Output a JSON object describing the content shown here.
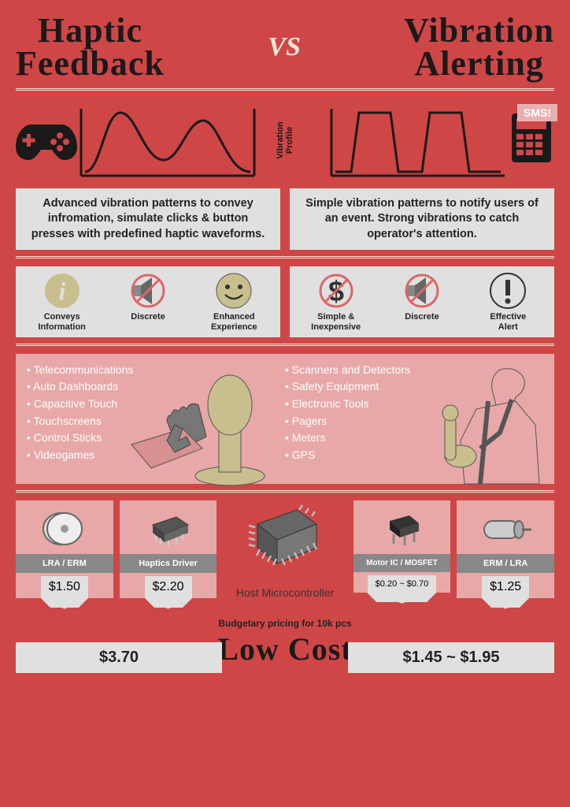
{
  "header": {
    "left_title_l1": "Haptic",
    "left_title_l2": "Feedback",
    "vs": "VS",
    "right_title_l1": "Vibration",
    "right_title_l2": "Alerting"
  },
  "profile": {
    "label_l1": "Vibration",
    "label_l2": "Profile",
    "sms": "SMS!"
  },
  "desc": {
    "left": "Advanced vibration patterns to convey infromation, simulate clicks & button presses with predefined haptic waveforms.",
    "right": "Simple vibration patterns to notify users of an event. Strong vibrations to catch operator's attention."
  },
  "features": {
    "left": [
      {
        "label_l1": "Conveys",
        "label_l2": "Information"
      },
      {
        "label_l1": "Discrete",
        "label_l2": ""
      },
      {
        "label_l1": "Enhanced",
        "label_l2": "Experience"
      }
    ],
    "right": [
      {
        "label_l1": "Simple &",
        "label_l2": "Inexpensive"
      },
      {
        "label_l1": "Discrete",
        "label_l2": ""
      },
      {
        "label_l1": "Effective",
        "label_l2": "Alert"
      }
    ]
  },
  "apps": {
    "left": [
      "Telecommunications",
      "Auto Dashboards",
      "Capacitive Touch",
      "Touchscreens",
      "Control Sticks",
      "Videogames"
    ],
    "right": [
      "Scanners and Detectors",
      "Safety Equipment",
      "Electronic Tools",
      "Pagers",
      "Meters",
      "GPS"
    ]
  },
  "cost": {
    "items": [
      {
        "name": "LRA / ERM",
        "price": "$1.50"
      },
      {
        "name": "Haptics Driver",
        "price": "$2.20"
      },
      {
        "name": "Host Microcontroller",
        "price": ""
      },
      {
        "name": "Motor IC / MOSFET",
        "price": "$0.20 ~ $0.70"
      },
      {
        "name": "ERM / LRA",
        "price": "$1.25"
      }
    ],
    "budget_note": "Budgetary pricing for 10k pcs",
    "low_cost": "Low Cost",
    "total_left": "$3.70",
    "total_right": "$1.45 ~ $1.95"
  },
  "colors": {
    "bg": "#cf4647",
    "panel": "#e0e0e0",
    "pink": "#e8a8a8",
    "cream": "#f0e8d8",
    "khaki": "#c9be8e",
    "dark": "#1a1a1a"
  }
}
